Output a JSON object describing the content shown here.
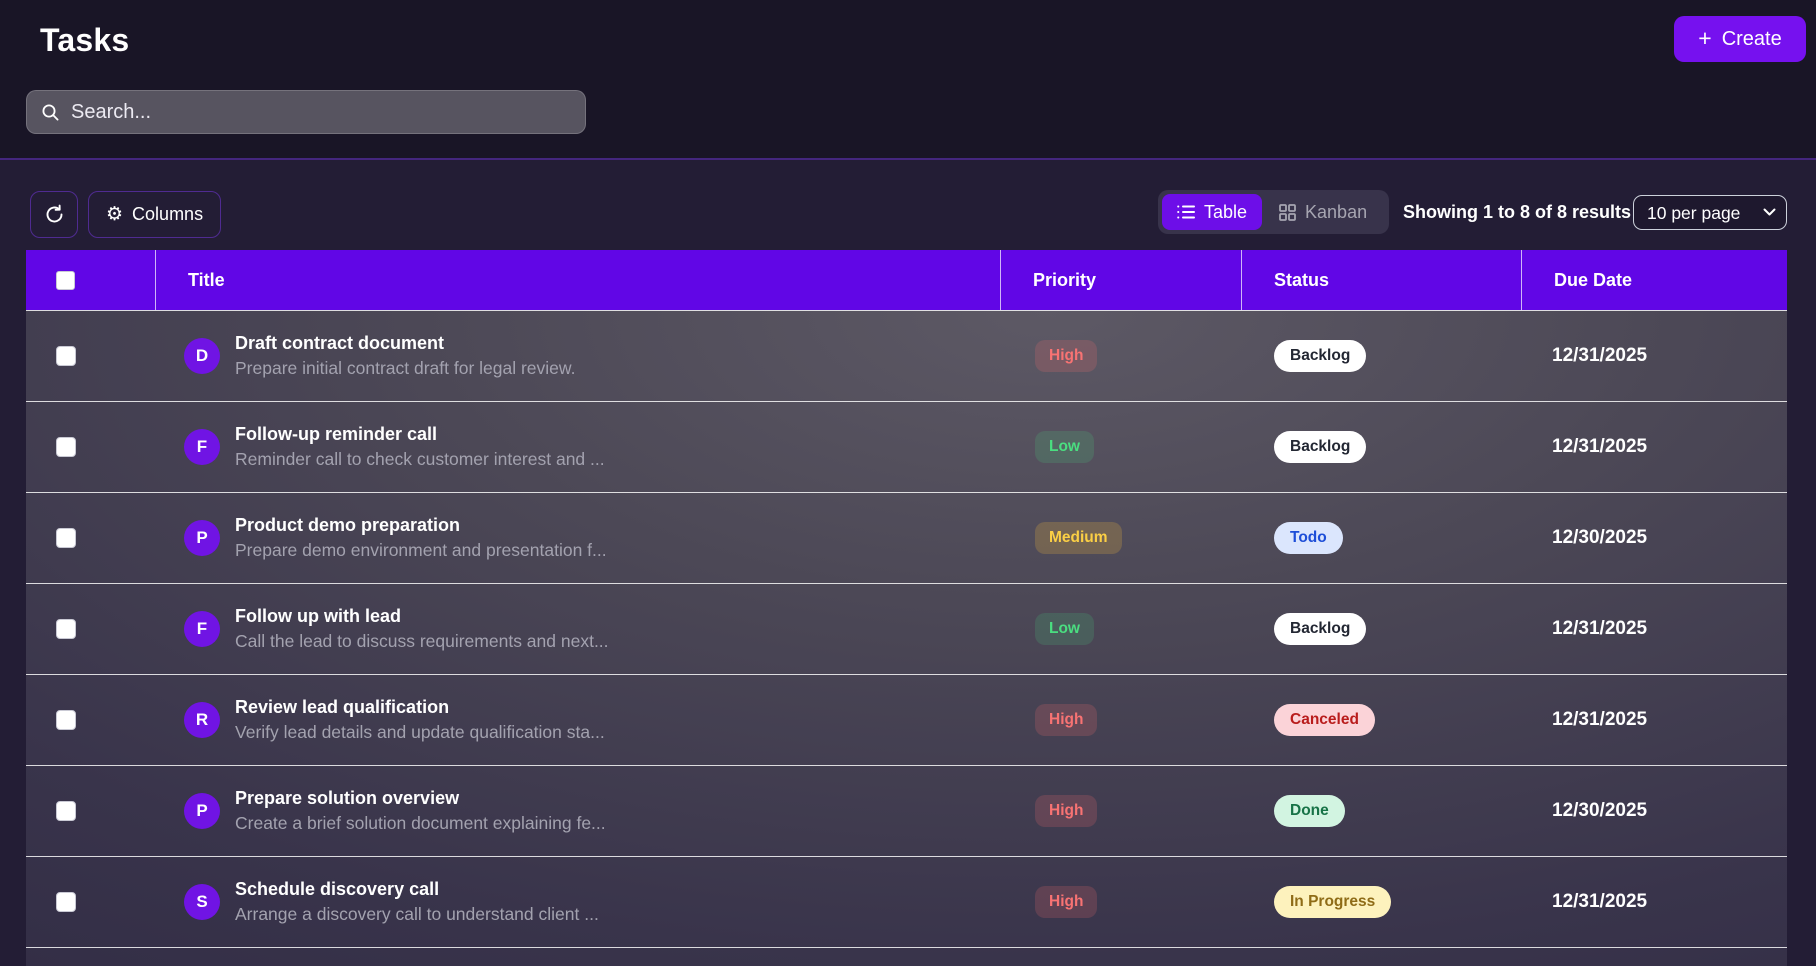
{
  "header": {
    "title": "Tasks",
    "create_button": {
      "label": "Create",
      "plus": "+"
    },
    "search": {
      "placeholder": "Search...",
      "value": ""
    }
  },
  "toolbar": {
    "columns_button": "Columns",
    "view_toggle": {
      "table_label": "Table",
      "kanban_label": "Kanban",
      "active": "Table"
    },
    "results_summary": "Showing 1 to 8 of 8 results",
    "page_size_selected": "10 per page"
  },
  "table": {
    "columns": [
      "Title",
      "Priority",
      "Status",
      "Due Date"
    ],
    "rows": [
      {
        "initial": "D",
        "title": "Draft contract document",
        "description": "Prepare initial contract draft for legal review.",
        "priority": "High",
        "status": "Backlog",
        "due_date": "12/31/2025"
      },
      {
        "initial": "F",
        "title": "Follow-up reminder call",
        "description": "Reminder call to check customer interest and ...",
        "priority": "Low",
        "status": "Backlog",
        "due_date": "12/31/2025"
      },
      {
        "initial": "P",
        "title": "Product demo preparation",
        "description": "Prepare demo environment and presentation f...",
        "priority": "Medium",
        "status": "Todo",
        "due_date": "12/30/2025"
      },
      {
        "initial": "F",
        "title": "Follow up with lead",
        "description": "Call the lead to discuss requirements and next...",
        "priority": "Low",
        "status": "Backlog",
        "due_date": "12/31/2025"
      },
      {
        "initial": "R",
        "title": "Review lead qualification",
        "description": "Verify lead details and update qualification sta...",
        "priority": "High",
        "status": "Canceled",
        "due_date": "12/31/2025"
      },
      {
        "initial": "P",
        "title": "Prepare solution overview",
        "description": "Create a brief solution document explaining fe...",
        "priority": "High",
        "status": "Done",
        "due_date": "12/30/2025"
      },
      {
        "initial": "S",
        "title": "Schedule discovery call",
        "description": "Arrange a discovery call to understand client ...",
        "priority": "High",
        "status": "In Progress",
        "due_date": "12/31/2025"
      }
    ],
    "partial_row_visible": true
  },
  "theme": {
    "accent": "#7611ef",
    "table_header": "#6106e6",
    "toggle_active": "#6d0ee8",
    "avatar": "#7014e4",
    "priority": {
      "High": {
        "background": "rgba(248,113,113,0.19)",
        "color": "#f87373"
      },
      "Low": {
        "background": "rgba(74,222,128,0.16)",
        "color": "#4ade80"
      },
      "Medium": {
        "background": "rgba(245,185,60,0.22)",
        "color": "#fbcf45"
      }
    },
    "status": {
      "Backlog": {
        "background": "#ffffff",
        "color": "#232733"
      },
      "Todo": {
        "background": "#dbe6fd",
        "color": "#1d4ed8"
      },
      "Canceled": {
        "background": "#fbd3d8",
        "color": "#b91c1c"
      },
      "Done": {
        "background": "#d2f4e1",
        "color": "#177347"
      },
      "In Progress": {
        "background": "#fdf2bd",
        "color": "#8f6c17"
      }
    }
  }
}
